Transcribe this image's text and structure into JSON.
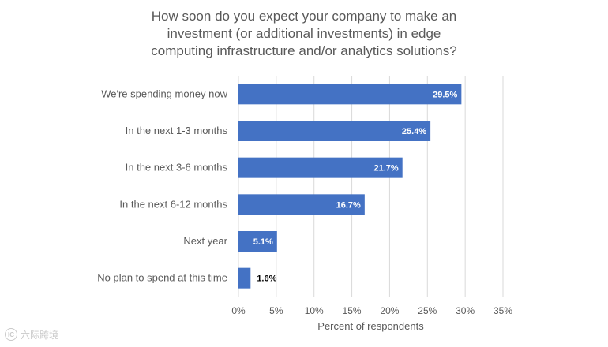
{
  "chart_data": {
    "type": "bar",
    "orientation": "horizontal",
    "title_lines": [
      "How soon do you expect your company to make an",
      "investment (or additional investments) in edge",
      "computing infrastructure and/or analytics solutions?"
    ],
    "categories": [
      "We're spending money now",
      "In the next 1-3 months",
      "In the next 3-6 months",
      "In the next 6-12 months",
      "Next year",
      "No plan to spend at this time"
    ],
    "values": [
      29.5,
      25.4,
      21.7,
      16.7,
      5.1,
      1.6
    ],
    "data_labels": [
      "29.5%",
      "25.4%",
      "21.7%",
      "16.7%",
      "5.1%",
      "1.6%"
    ],
    "xlabel": "Percent of respondents",
    "xlim": [
      0,
      35
    ],
    "xticks": [
      0,
      5,
      10,
      15,
      20,
      25,
      30,
      35
    ],
    "xtick_labels": [
      "0%",
      "5%",
      "10%",
      "15%",
      "20%",
      "25%",
      "30%",
      "35%"
    ],
    "grid": "vertical",
    "bar_color": "#4472c4",
    "grid_color": "#d9d9d9",
    "text_color": "#595959"
  },
  "watermark": {
    "logo_text": "IC",
    "text": "六际跨境"
  }
}
